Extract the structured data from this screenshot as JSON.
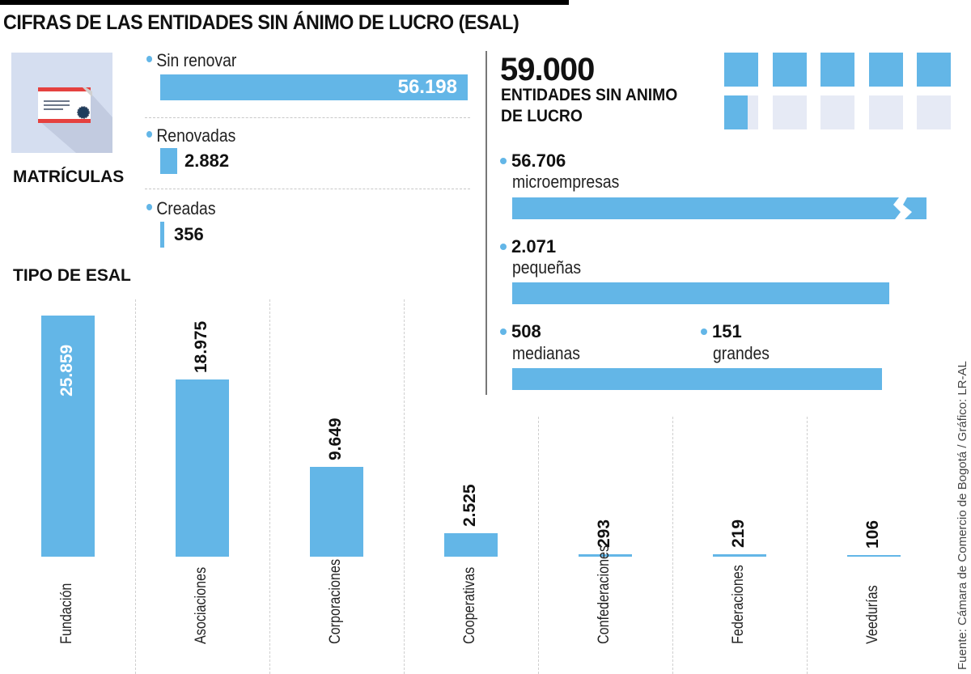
{
  "header": {
    "title": "CIFRAS DE LAS ENTIDADES SIN ÁNIMO DE LUCRO (ESAL)"
  },
  "matriculas": {
    "title": "MATRÍCULAS",
    "icon": "certificate-icon",
    "items": [
      {
        "label": "Sin renovar",
        "value": 56198,
        "value_text": "56.198"
      },
      {
        "label": "Renovadas",
        "value": 2882,
        "value_text": "2.882"
      },
      {
        "label": "Creadas",
        "value": 356,
        "value_text": "356"
      }
    ]
  },
  "total": {
    "value_text": "59.000",
    "label_line1": "ENTIDADES SIN ANIMO",
    "label_line2": "DE LUCRO",
    "squares_total": 10,
    "squares_filled": 5.7
  },
  "tamanos": {
    "items": [
      {
        "value": 56706,
        "value_text": "56.706",
        "label": "microempresas",
        "broken_axis": true
      },
      {
        "value": 2071,
        "value_text": "2.071",
        "label": "pequeñas"
      },
      {
        "value": 508,
        "value_text": "508",
        "label": "medianas"
      },
      {
        "value": 151,
        "value_text": "151",
        "label": "grandes"
      }
    ]
  },
  "tipo": {
    "title": "TIPO DE ESAL"
  },
  "chart_data": [
    {
      "type": "bar",
      "title": "MATRÍCULAS",
      "orientation": "horizontal",
      "categories": [
        "Sin renovar",
        "Renovadas",
        "Creadas"
      ],
      "values": [
        56198,
        2882,
        356
      ]
    },
    {
      "type": "bar",
      "title": "59.000 ENTIDADES SIN ANIMO DE LUCRO",
      "orientation": "horizontal",
      "categories": [
        "microempresas",
        "pequeñas",
        "medianas",
        "grandes"
      ],
      "values": [
        56706,
        2071,
        508,
        151
      ],
      "annotations": [
        "microempresas bar shown with broken axis"
      ]
    },
    {
      "type": "bar",
      "title": "TIPO DE ESAL",
      "orientation": "vertical",
      "categories": [
        "Fundación",
        "Asociaciones",
        "Corporaciones",
        "Cooperativas",
        "Confederaciones",
        "Federaciones",
        "Veedurías"
      ],
      "values": [
        25859,
        18975,
        9649,
        2525,
        293,
        219,
        106
      ],
      "value_labels": [
        "25.859",
        "18.975",
        "9.649",
        "2.525",
        "293",
        "219",
        "106"
      ],
      "xlabel": "",
      "ylabel": "",
      "ylim": [
        0,
        26000
      ],
      "grid": false
    }
  ],
  "source": "Fuente: Cámara de Comercio de Bogotá / Gráfico: LR-AL",
  "colors": {
    "bar": "#63b6e7",
    "square_empty": "#e6eaf5",
    "icon_bg": "#d5def0"
  }
}
